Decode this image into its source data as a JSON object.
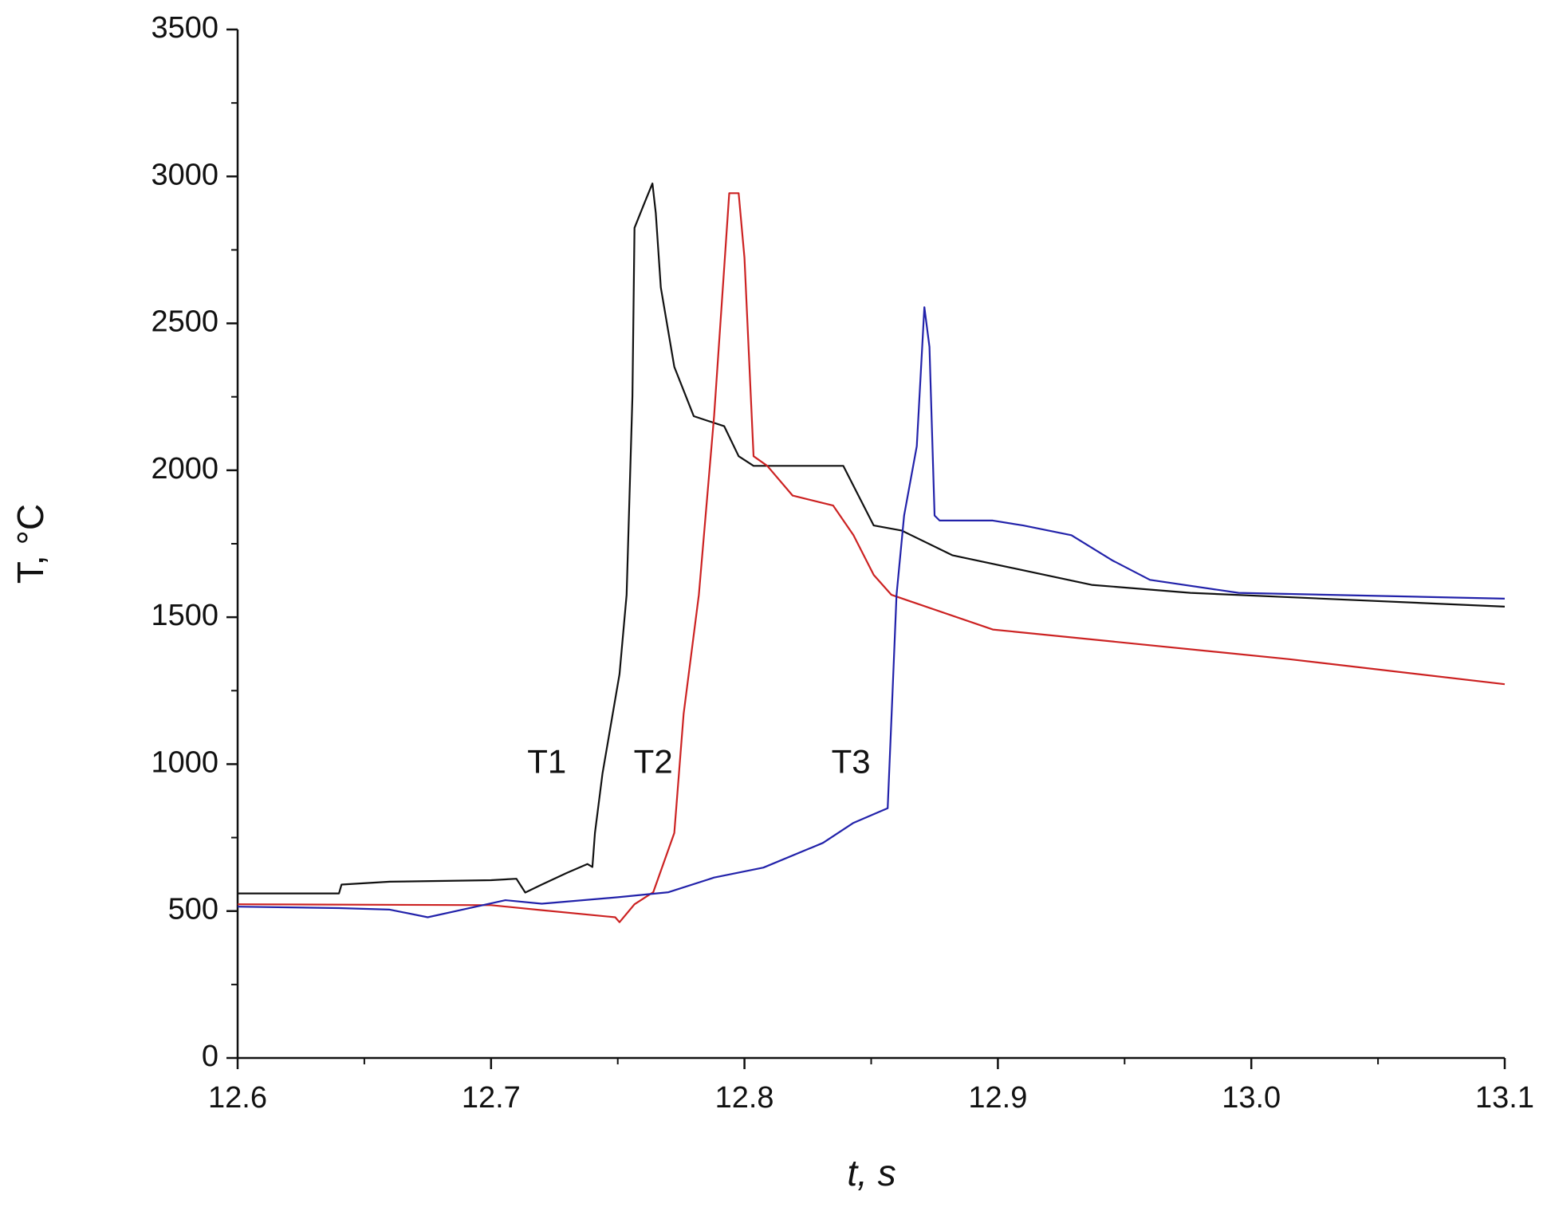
{
  "chart_data": {
    "type": "line",
    "xlabel": "t, s",
    "ylabel": "T, °C",
    "xlim": [
      12.6,
      13.1
    ],
    "ylim": [
      0,
      3500
    ],
    "xticks": [
      12.6,
      12.7,
      12.8,
      12.9,
      {
        "value": 13,
        "label": "13.0"
      },
      13.1
    ],
    "minor_xticks": [
      12.65,
      12.75,
      12.85,
      12.95,
      13.05
    ],
    "yticks": [
      0,
      500,
      1000,
      1500,
      2000,
      2500,
      3000,
      3500
    ],
    "minor_yticks": [
      250,
      750,
      1250,
      1750,
      2250,
      2750,
      3250
    ],
    "grid": false,
    "series": [
      {
        "name": "T1",
        "color": "#111111",
        "x": [
          12.6,
          12.64,
          12.641,
          12.66,
          12.7,
          12.71,
          12.7135,
          12.72,
          12.73,
          12.738,
          12.74,
          12.741,
          12.744,
          12.7507,
          12.7535,
          12.7558,
          12.7566,
          12.7605,
          12.7637,
          12.765,
          12.767,
          12.7723,
          12.78,
          12.792,
          12.7977,
          12.8036,
          12.839,
          12.843,
          12.851,
          12.862,
          12.882,
          12.937,
          12.976,
          13.1
        ],
        "values": [
          560,
          560,
          590,
          600,
          605,
          610,
          563,
          590,
          630,
          660,
          650,
          766,
          969,
          1306,
          1576,
          2251,
          2825,
          2909,
          2976,
          2875,
          2622,
          2352,
          2184,
          2150,
          2048,
          2015,
          2015,
          1947,
          1812,
          1795,
          1711,
          1610,
          1583,
          1536
        ]
      },
      {
        "name": "T2",
        "color": "#cc2222",
        "x": [
          12.6,
          12.7,
          12.72,
          12.749,
          12.7507,
          12.7566,
          12.764,
          12.7723,
          12.776,
          12.782,
          12.788,
          12.792,
          12.794,
          12.7977,
          12.8,
          12.8036,
          12.809,
          12.819,
          12.835,
          12.843,
          12.851,
          12.858,
          12.898,
          13.015,
          13.1
        ],
        "values": [
          523,
          520,
          503,
          479,
          462,
          523,
          564,
          766,
          1171,
          1576,
          2184,
          2690,
          2943,
          2943,
          2723,
          2048,
          2015,
          1914,
          1880,
          1779,
          1644,
          1576,
          1458,
          1357,
          1272
        ]
      },
      {
        "name": "T3",
        "color": "#2222aa",
        "x": [
          12.6,
          12.64,
          12.66,
          12.675,
          12.7057,
          12.72,
          12.75,
          12.77,
          12.788,
          12.8075,
          12.831,
          12.843,
          12.8565,
          12.8584,
          12.86,
          12.863,
          12.868,
          12.871,
          12.873,
          12.875,
          12.877,
          12.898,
          12.91,
          12.929,
          12.945,
          12.96,
          12.995,
          13.1
        ],
        "values": [
          515,
          510,
          505,
          479,
          537,
          525,
          547,
          564,
          614,
          648,
          732,
          800,
          850,
          1239,
          1576,
          1846,
          2082,
          2555,
          2420,
          1846,
          1829,
          1829,
          1812,
          1779,
          1694,
          1627,
          1583,
          1563
        ]
      }
    ],
    "annotations": [
      {
        "text": "T1",
        "x": 12.722,
        "y": 1000
      },
      {
        "text": "T2",
        "x": 12.764,
        "y": 1000
      },
      {
        "text": "T3",
        "x": 12.842,
        "y": 1000
      }
    ]
  }
}
